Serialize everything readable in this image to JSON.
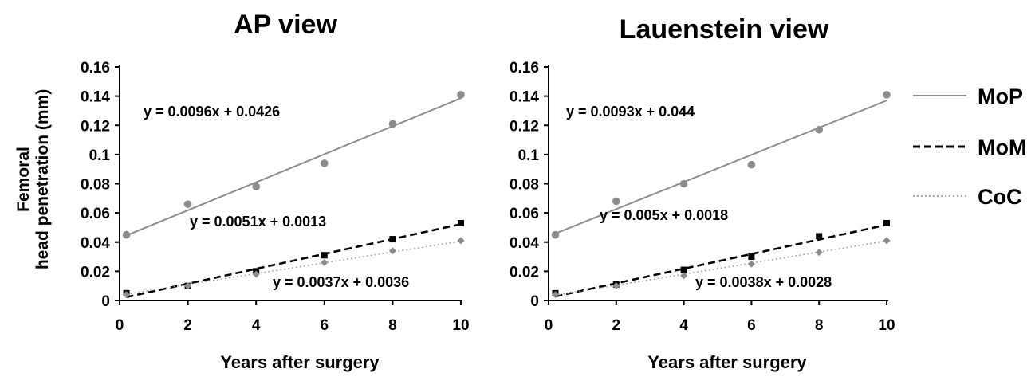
{
  "figure": {
    "ylabel_line1": "Femoral",
    "ylabel_line2": "head penetration (mm)",
    "legend": [
      {
        "name": "MoP",
        "style": "solid",
        "color": "#8c8c8c"
      },
      {
        "name": "MoM",
        "style": "dashed",
        "color": "#000000"
      },
      {
        "name": "CoC",
        "style": "dotted",
        "color": "#a6a6a6"
      }
    ]
  },
  "chart_data": [
    {
      "type": "scatter",
      "title": "AP view",
      "xlabel": "Years after surgery",
      "ylabel": "Femoral head penetration (mm)",
      "xlim": [
        0,
        10
      ],
      "ylim": [
        0,
        0.16
      ],
      "x_ticks": [
        "0",
        "2",
        "4",
        "6",
        "8",
        "10"
      ],
      "y_ticks": [
        "0",
        "0.02",
        "0.04",
        "0.06",
        "0.08",
        "0.1",
        "0.12",
        "0.14",
        "0.16"
      ],
      "grid": false,
      "x": [
        0.2,
        2,
        4,
        6,
        8,
        10
      ],
      "series": [
        {
          "name": "MoP",
          "values": [
            0.045,
            0.066,
            0.078,
            0.094,
            0.121,
            0.141
          ],
          "trend": {
            "slope": 0.0096,
            "intercept": 0.0426,
            "label": "y = 0.0096x + 0.0426"
          }
        },
        {
          "name": "MoM",
          "values": [
            0.005,
            0.01,
            0.02,
            0.031,
            0.042,
            0.053
          ],
          "trend": {
            "slope": 0.0051,
            "intercept": 0.0013,
            "label": "y = 0.0051x + 0.0013"
          }
        },
        {
          "name": "CoC",
          "values": [
            0.004,
            0.01,
            0.018,
            0.026,
            0.034,
            0.041
          ],
          "trend": {
            "slope": 0.0037,
            "intercept": 0.0036,
            "label": "y = 0.0037x + 0.0036"
          }
        }
      ]
    },
    {
      "type": "scatter",
      "title": "Lauenstein view",
      "xlabel": "Years after surgery",
      "ylabel": "Femoral head penetration (mm)",
      "xlim": [
        0,
        10
      ],
      "ylim": [
        0,
        0.16
      ],
      "x_ticks": [
        "0",
        "2",
        "4",
        "6",
        "8",
        "10"
      ],
      "y_ticks": [
        "0",
        "0.02",
        "0.04",
        "0.06",
        "0.08",
        "0.1",
        "0.12",
        "0.14",
        "0.16"
      ],
      "grid": false,
      "x": [
        0.2,
        2,
        4,
        6,
        8,
        10
      ],
      "series": [
        {
          "name": "MoP",
          "values": [
            0.045,
            0.068,
            0.08,
            0.093,
            0.117,
            0.141
          ],
          "trend": {
            "slope": 0.0093,
            "intercept": 0.044,
            "label": "y = 0.0093x + 0.044"
          }
        },
        {
          "name": "MoM",
          "values": [
            0.005,
            0.011,
            0.021,
            0.03,
            0.044,
            0.053
          ],
          "trend": {
            "slope": 0.005,
            "intercept": 0.0018,
            "label": "y = 0.005x + 0.0018"
          }
        },
        {
          "name": "CoC",
          "values": [
            0.004,
            0.01,
            0.017,
            0.025,
            0.033,
            0.041
          ],
          "trend": {
            "slope": 0.0038,
            "intercept": 0.0028,
            "label": "y = 0.0038x + 0.0028"
          }
        }
      ]
    }
  ]
}
